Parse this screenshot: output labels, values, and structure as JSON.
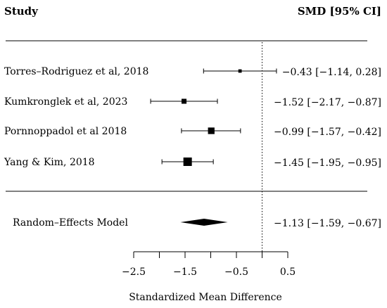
{
  "chart_data": {
    "type": "forest",
    "header": {
      "study": "Study",
      "effect": "SMD [95% CI]"
    },
    "xlabel": "Standardized Mean Difference",
    "xlim": [
      -2.5,
      0.5
    ],
    "xticks": [
      -2.5,
      -2,
      -1.5,
      -1,
      -0.5,
      0,
      0.5
    ],
    "xtick_labels": [
      "−2.5",
      "",
      "−1.5",
      "",
      "−0.5",
      "",
      "0.5"
    ],
    "reference_line": 0,
    "studies": [
      {
        "name": "Torres–Rodriguez et al, 2018",
        "smd": -0.43,
        "lo": -1.14,
        "hi": 0.28,
        "ci_text": "−0.43 [−1.14, 0.28]",
        "weight": 0.2
      },
      {
        "name": "Kumkronglek et al, 2023",
        "smd": -1.52,
        "lo": -2.17,
        "hi": -0.87,
        "ci_text": "−1.52 [−2.17, −0.87]",
        "weight": 0.45
      },
      {
        "name": "Pornnoppadol et al 2018",
        "smd": -0.99,
        "lo": -1.57,
        "hi": -0.42,
        "ci_text": "−0.99 [−1.57, −0.42]",
        "weight": 0.7
      },
      {
        "name": "Yang & Kim, 2018",
        "smd": -1.45,
        "lo": -1.95,
        "hi": -0.95,
        "ci_text": "−1.45 [−1.95, −0.95]",
        "weight": 1.0
      }
    ],
    "summary": {
      "name": "Random–Effects  Model",
      "smd": -1.13,
      "lo": -1.59,
      "hi": -0.67,
      "ci_text": "−1.13 [−1.59, −0.67]"
    }
  }
}
